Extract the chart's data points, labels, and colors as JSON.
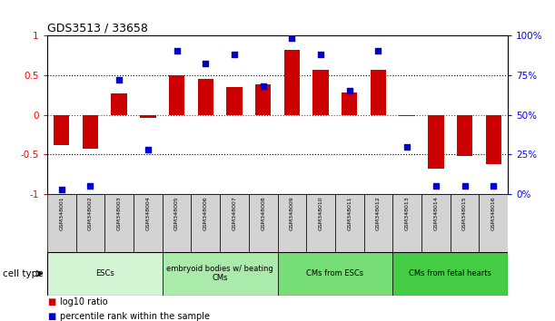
{
  "title": "GDS3513 / 33658",
  "samples": [
    "GSM348001",
    "GSM348002",
    "GSM348003",
    "GSM348004",
    "GSM348005",
    "GSM348006",
    "GSM348007",
    "GSM348008",
    "GSM348009",
    "GSM348010",
    "GSM348011",
    "GSM348012",
    "GSM348013",
    "GSM348014",
    "GSM348015",
    "GSM348016"
  ],
  "log10_ratio": [
    -0.38,
    -0.43,
    0.27,
    -0.04,
    0.5,
    0.45,
    0.35,
    0.38,
    0.82,
    0.57,
    0.28,
    0.57,
    -0.02,
    -0.68,
    -0.52,
    -0.62
  ],
  "percentile_rank": [
    3,
    5,
    72,
    28,
    90,
    82,
    88,
    68,
    98,
    88,
    65,
    90,
    30,
    5,
    5,
    5
  ],
  "cell_groups": [
    {
      "label": "ESCs",
      "start": 0,
      "end": 3,
      "color": "#d4f5d4"
    },
    {
      "label": "embryoid bodies w/ beating\nCMs",
      "start": 4,
      "end": 7,
      "color": "#aaeaaa"
    },
    {
      "label": "CMs from ESCs",
      "start": 8,
      "end": 11,
      "color": "#77dd77"
    },
    {
      "label": "CMs from fetal hearts",
      "start": 12,
      "end": 15,
      "color": "#44cc44"
    }
  ],
  "bar_color": "#cc0000",
  "dot_color": "#0000cc",
  "ylim_left": [
    -1,
    1
  ],
  "ylim_right": [
    0,
    100
  ],
  "yticks_left": [
    -1,
    -0.5,
    0,
    0.5,
    1
  ],
  "yticks_right": [
    0,
    25,
    50,
    75,
    100
  ],
  "yticklabels_left": [
    "-1",
    "-0.5",
    "0",
    "0.5",
    "1"
  ],
  "yticklabels_right": [
    "0%",
    "25%",
    "50%",
    "75%",
    "100%"
  ],
  "bar_width": 0.55,
  "figsize": [
    6.11,
    3.54
  ],
  "dpi": 100
}
